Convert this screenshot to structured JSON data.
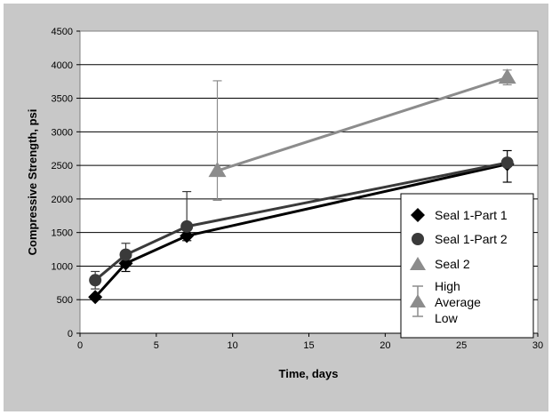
{
  "chart_data": {
    "type": "line",
    "title": "",
    "xlabel": "Time, days",
    "ylabel": "Compressive Strength, psi",
    "xlim": [
      0,
      30
    ],
    "ylim": [
      0,
      4500
    ],
    "xticks": [
      0,
      5,
      10,
      15,
      20,
      25,
      30
    ],
    "yticks": [
      0,
      500,
      1000,
      1500,
      2000,
      2500,
      3000,
      3500,
      4000,
      4500
    ],
    "grid": "horizontal",
    "legend_position": "bottom-right",
    "series": [
      {
        "name": "Seal 1-Part 1",
        "marker": "diamond",
        "color": "#000000",
        "points": [
          {
            "x": 1,
            "y": 540,
            "high": 560,
            "low": 520
          },
          {
            "x": 3,
            "y": 1040,
            "high": 1080,
            "low": 920
          },
          {
            "x": 7,
            "y": 1450,
            "high": 1480,
            "low": 1380
          },
          {
            "x": 28,
            "y": 2520,
            "high": 2720,
            "low": 2250
          }
        ]
      },
      {
        "name": "Seal 1-Part 2",
        "marker": "circle",
        "color": "#3a3a3a",
        "points": [
          {
            "x": 1,
            "y": 790,
            "high": 920,
            "low": 660
          },
          {
            "x": 3,
            "y": 1170,
            "high": 1340,
            "low": 1060
          },
          {
            "x": 7,
            "y": 1590,
            "high": 2110,
            "low": 1380
          },
          {
            "x": 28,
            "y": 2540,
            "high": 2590,
            "low": 2500
          }
        ]
      },
      {
        "name": "Seal 2",
        "marker": "triangle",
        "color": "#8c8c8c",
        "points": [
          {
            "x": 9,
            "y": 2420,
            "high": 3760,
            "low": 1980
          },
          {
            "x": 28,
            "y": 3810,
            "high": 3920,
            "low": 3700
          }
        ]
      }
    ],
    "legend_key": {
      "high": "High",
      "average": "Average",
      "low": "Low"
    }
  }
}
